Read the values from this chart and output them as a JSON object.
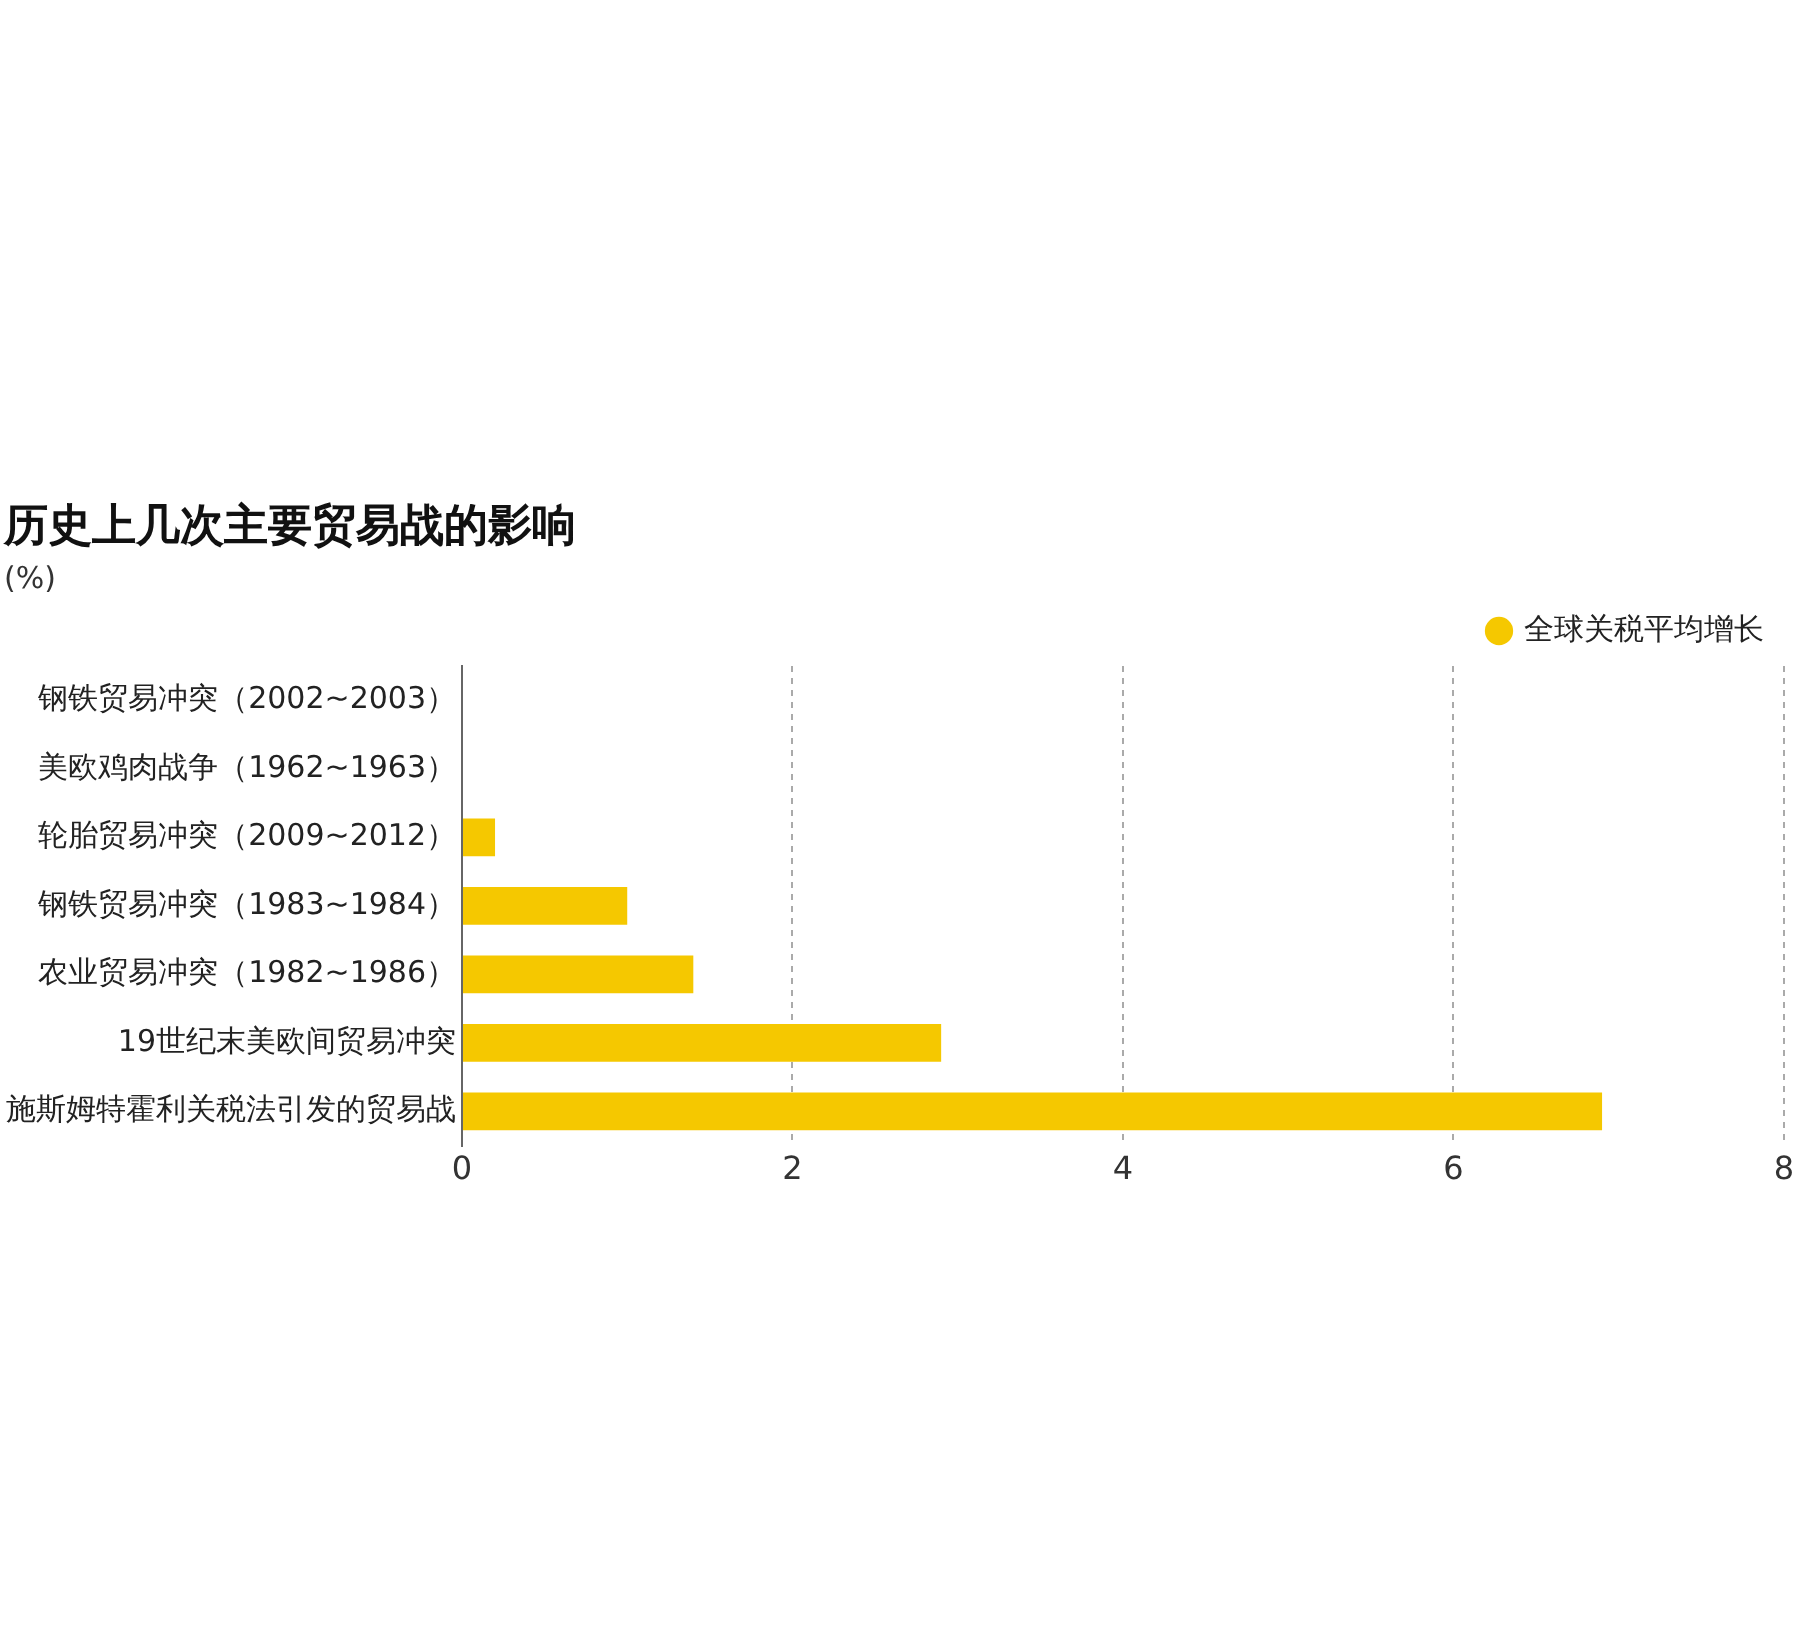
{
  "chart_data": {
    "type": "bar",
    "orientation": "horizontal",
    "title": "历史上几次主要贸易战的影响",
    "subtitle": "(%)",
    "categories": [
      "钢铁贸易冲突（2002~2003）",
      "美欧鸡肉战争（1962~1963）",
      "轮胎贸易冲突（2009~2012）",
      "钢铁贸易冲突（1983~1984）",
      "农业贸易冲突（1982~1986）",
      "19世纪末美欧间贸易冲突",
      "施斯姆特霍利关税法引发的贸易战"
    ],
    "series": [
      {
        "name": "全球关税平均增长",
        "color": "#f5c800",
        "values": [
          0,
          0,
          0.2,
          1.0,
          1.4,
          2.9,
          6.9
        ]
      }
    ],
    "xlim": [
      0,
      8
    ],
    "xticks": [
      0,
      2,
      4,
      6,
      8
    ],
    "grid": "x",
    "legend": "top right"
  }
}
